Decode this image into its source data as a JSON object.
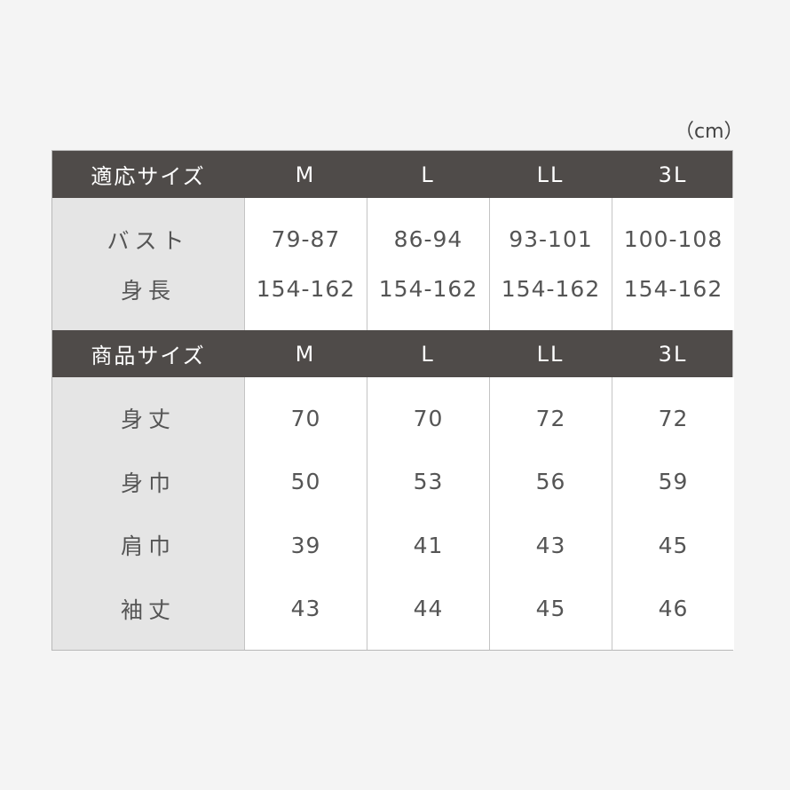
{
  "unit": "（cm）",
  "sizes": [
    "M",
    "L",
    "LL",
    "3L"
  ],
  "fit": {
    "header": "適応サイズ",
    "rows": [
      {
        "label": "バスト",
        "values": [
          "79-87",
          "86-94",
          "93-101",
          "100-108"
        ]
      },
      {
        "label": "身長",
        "values": [
          "154-162",
          "154-162",
          "154-162",
          "154-162"
        ]
      }
    ]
  },
  "product": {
    "header": "商品サイズ",
    "rows": [
      {
        "label": "身丈",
        "values": [
          "70",
          "70",
          "72",
          "72"
        ]
      },
      {
        "label": "身巾",
        "values": [
          "50",
          "53",
          "56",
          "59"
        ]
      },
      {
        "label": "肩巾",
        "values": [
          "39",
          "41",
          "43",
          "45"
        ]
      },
      {
        "label": "袖丈",
        "values": [
          "43",
          "44",
          "45",
          "46"
        ]
      }
    ]
  },
  "colors": {
    "header_bg": "#4f4b49",
    "label_bg": "#e5e5e5",
    "cell_bg": "#ffffff",
    "page_bg": "#f4f4f4"
  }
}
